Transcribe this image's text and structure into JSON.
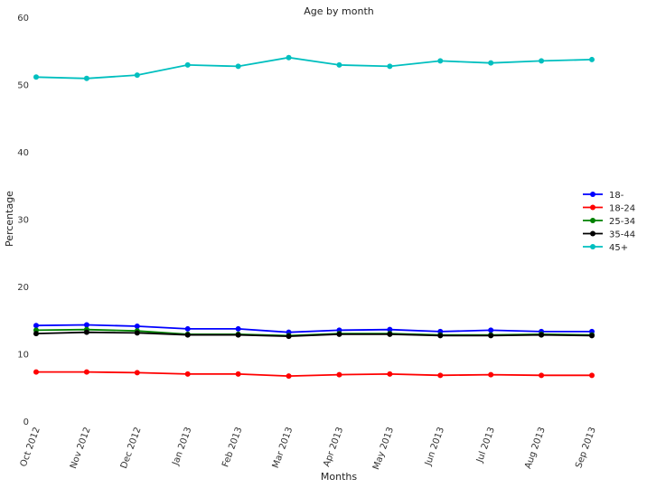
{
  "chart_data": {
    "type": "line",
    "title": "Age by month",
    "xlabel": "Months",
    "ylabel": "Percentage",
    "ylim": [
      0,
      60
    ],
    "yticks": [
      0,
      10,
      20,
      30,
      40,
      50,
      60
    ],
    "grid": false,
    "legend_position": "right",
    "categories": [
      "Oct 2012",
      "Nov 2012",
      "Dec 2012",
      "Jan 2013",
      "Feb 2013",
      "Mar 2013",
      "Apr 2013",
      "May 2013",
      "Jun 2013",
      "Jul 2013",
      "Aug 2013",
      "Sep 2013"
    ],
    "series": [
      {
        "name": "18-",
        "color": "#0000ff",
        "values": [
          14.2,
          14.3,
          14.1,
          13.7,
          13.7,
          13.2,
          13.5,
          13.6,
          13.3,
          13.5,
          13.3,
          13.3
        ]
      },
      {
        "name": "18-24",
        "color": "#ff0000",
        "values": [
          7.3,
          7.3,
          7.2,
          7.0,
          7.0,
          6.7,
          6.9,
          7.0,
          6.8,
          6.9,
          6.8,
          6.8
        ]
      },
      {
        "name": "25-34",
        "color": "#008000",
        "values": [
          13.5,
          13.6,
          13.4,
          12.9,
          12.9,
          12.7,
          13.0,
          13.0,
          12.8,
          12.8,
          12.9,
          12.8
        ]
      },
      {
        "name": "35-44",
        "color": "#000000",
        "values": [
          13.0,
          13.2,
          13.1,
          12.8,
          12.8,
          12.6,
          12.9,
          12.9,
          12.7,
          12.7,
          12.8,
          12.7
        ]
      },
      {
        "name": "45+",
        "color": "#00bfbf",
        "values": [
          51.1,
          50.9,
          51.4,
          52.9,
          52.7,
          54.0,
          52.9,
          52.7,
          53.5,
          53.2,
          53.5,
          53.7
        ]
      }
    ]
  }
}
